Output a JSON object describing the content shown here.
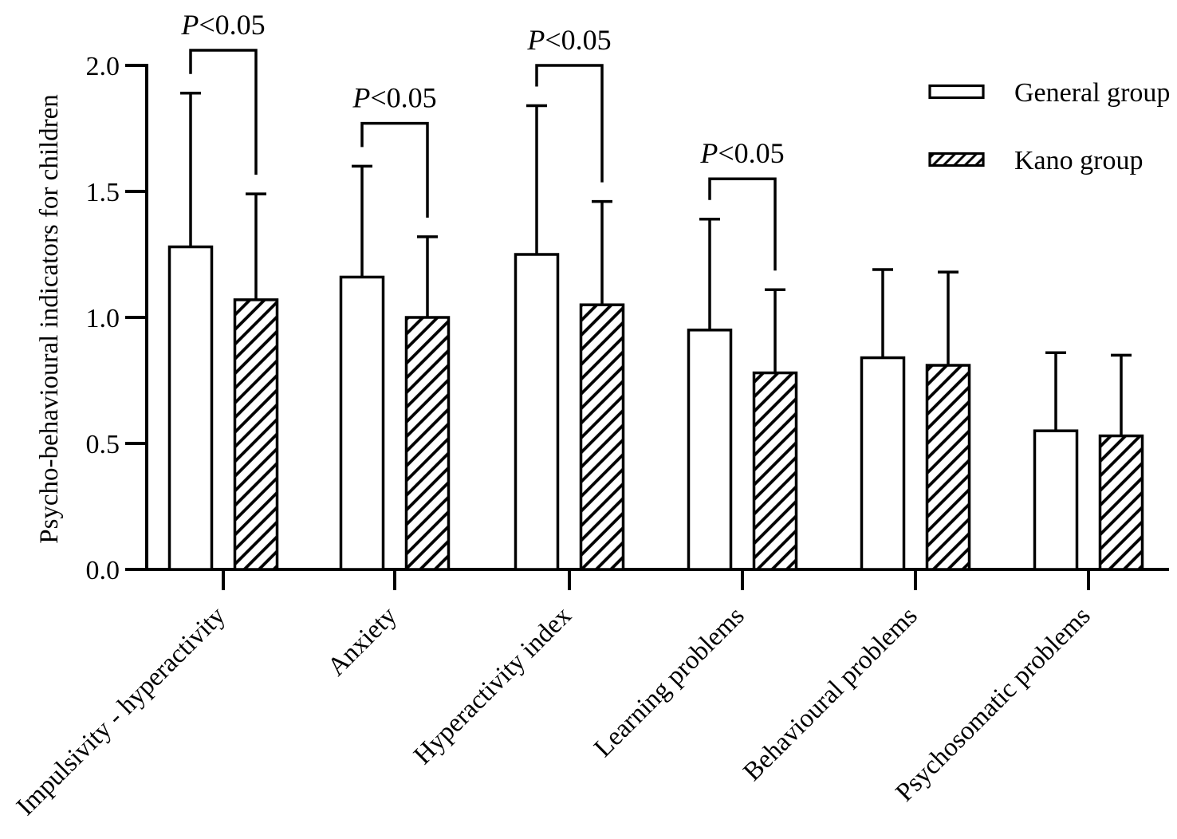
{
  "figure": {
    "background": "#ffffff",
    "ink_color": "#000000"
  },
  "chart_data": {
    "type": "bar",
    "title": "",
    "xlabel": "",
    "ylabel": "Psycho-behavioural indicators for children",
    "ylim": [
      0.0,
      2.0
    ],
    "yticks": [
      "0.0",
      "0.5",
      "1.0",
      "1.5",
      "2.0"
    ],
    "grid": false,
    "legend_position": "upper right",
    "categories": [
      "Impulsivity - hyperactivity",
      "Anxiety",
      "Hyperactivity index",
      "Learning problems",
      "Behavioural problems",
      "Psychosomatic problems"
    ],
    "series": [
      {
        "name": "General group",
        "fill": "white",
        "hatch": false,
        "means": [
          1.28,
          1.16,
          1.25,
          0.95,
          0.84,
          0.55
        ],
        "error_upper": [
          1.89,
          1.6,
          1.84,
          1.39,
          1.19,
          0.86
        ]
      },
      {
        "name": "Kano group",
        "fill": "diagonal-hatch",
        "hatch": true,
        "means": [
          1.07,
          1.0,
          1.05,
          0.78,
          0.81,
          0.53
        ],
        "error_upper": [
          1.49,
          1.32,
          1.46,
          1.11,
          1.18,
          0.85
        ]
      }
    ],
    "error_bars": "upper only, capped",
    "significance": [
      {
        "category_index": 0,
        "label": "P<0.05",
        "bracket_top_value": 2.06
      },
      {
        "category_index": 1,
        "label": "P<0.05",
        "bracket_top_value": 1.77
      },
      {
        "category_index": 2,
        "label": "P<0.05",
        "bracket_top_value": 2.0
      },
      {
        "category_index": 3,
        "label": "P<0.05",
        "bracket_top_value": 1.55
      }
    ],
    "legend": {
      "entries": [
        {
          "label": "General group",
          "hatch": false
        },
        {
          "label": "Kano group",
          "hatch": true
        }
      ]
    }
  }
}
